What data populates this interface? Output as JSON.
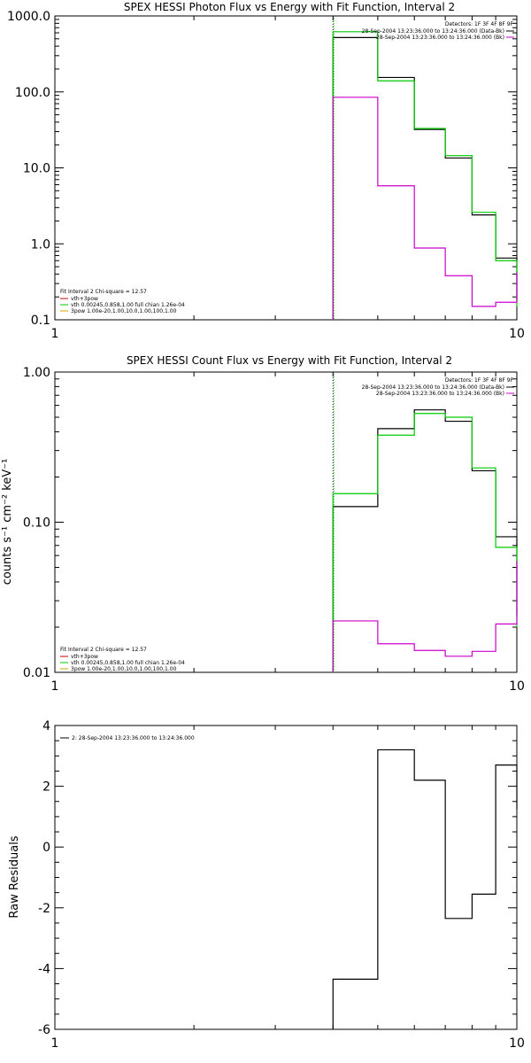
{
  "chart_data": [
    {
      "type": "line",
      "title": "SPEX HESSI Photon Flux vs Energy with Fit Function, Interval 2",
      "xlabel": "",
      "ylabel": "",
      "xscale": "log",
      "yscale": "log",
      "xlim": [
        1,
        10
      ],
      "ylim": [
        0.1,
        1000
      ],
      "x_ticks": [
        "1",
        "10"
      ],
      "y_ticks": [
        "0.1",
        "1.0",
        "10.0",
        "100.0",
        "1000.0"
      ],
      "vline": 4,
      "legend_top_right": {
        "title": "Detectors: 1F 3F 4F 8F 9F",
        "items": [
          {
            "text": "28-Sep-2004 13:23:36.000 to 13:24:36.000 (Data-Bk)",
            "color": "#000000"
          },
          {
            "text": "28-Sep-2004 13:23:36.000 to 13:24:36.000 (Bk)",
            "color": "#cc00cc"
          }
        ]
      },
      "legend_bottom_left": {
        "title": "Fit Interval 2   Chi-square = 12.57",
        "items": [
          {
            "text": "vth+3pow",
            "color": "#cc0000"
          },
          {
            "text": "vth 0.00245,0.858,1.00  full chian 1.26e-04",
            "color": "#00cc00"
          },
          {
            "text": "3pow 1.00e-20,1.00,10.0,1.00,100,1.00",
            "color": "#ccaa00"
          }
        ]
      },
      "series": [
        {
          "name": "Data-Bk",
          "color": "#000000",
          "edges": [
            4,
            5,
            6,
            7,
            8,
            9,
            10
          ],
          "values": [
            520,
            155,
            32,
            13.5,
            2.4,
            0.65,
            0.18
          ]
        },
        {
          "name": "vth+3pow",
          "color": "#00cc00",
          "edges": [
            4,
            5,
            6,
            7,
            8,
            9,
            10
          ],
          "values": [
            620,
            140,
            33,
            14.5,
            2.6,
            0.6,
            0.15
          ]
        },
        {
          "name": "Bk",
          "color": "#cc00cc",
          "edges": [
            4,
            5,
            6,
            7,
            8,
            9,
            10
          ],
          "values": [
            85,
            5.8,
            0.88,
            0.38,
            0.15,
            0.17,
            0.42
          ]
        }
      ]
    },
    {
      "type": "line",
      "title": "SPEX HESSI Count Flux vs Energy with Fit Function, Interval 2",
      "xlabel": "",
      "ylabel": "counts s⁻¹ cm⁻² keV⁻¹",
      "xscale": "log",
      "yscale": "log",
      "xlim": [
        1,
        10
      ],
      "ylim": [
        0.01,
        1
      ],
      "x_ticks": [
        "1",
        "10"
      ],
      "y_ticks": [
        "0.01",
        "0.10",
        "1.00"
      ],
      "vline": 4,
      "legend_top_right": {
        "title": "Detectors: 1F 3F 4F 8F 9F",
        "items": [
          {
            "text": "28-Sep-2004 13:23:36.000 to 13:24:36.000 (Data-Bk)",
            "color": "#000000"
          },
          {
            "text": "28-Sep-2004 13:23:36.000 to 13:24:36.000 (Bk)",
            "color": "#cc00cc"
          }
        ]
      },
      "legend_bottom_left": {
        "title": "Fit Interval 2   Chi-square = 12.57",
        "items": [
          {
            "text": "vth+3pow",
            "color": "#cc0000"
          },
          {
            "text": "vth 0.00245,0.858,1.00  full chian 1.26e-04",
            "color": "#00cc00"
          },
          {
            "text": "3pow 1.00e-20,1.00,10.0,1.00,100,1.00",
            "color": "#ccaa00"
          }
        ]
      },
      "series": [
        {
          "name": "Data-Bk",
          "color": "#000000",
          "edges": [
            4,
            5,
            6,
            7,
            8,
            9,
            10
          ],
          "values": [
            0.127,
            0.42,
            0.56,
            0.47,
            0.22,
            0.08,
            0.024
          ]
        },
        {
          "name": "vth+3pow",
          "color": "#00cc00",
          "edges": [
            4,
            5,
            6,
            7,
            8,
            9,
            10
          ],
          "values": [
            0.155,
            0.38,
            0.53,
            0.5,
            0.23,
            0.068,
            0.02
          ]
        },
        {
          "name": "Bk",
          "color": "#cc00cc",
          "edges": [
            4,
            5,
            6,
            7,
            8,
            9,
            10
          ],
          "values": [
            0.022,
            0.0155,
            0.014,
            0.0128,
            0.0138,
            0.021,
            0.055
          ]
        }
      ]
    },
    {
      "type": "line",
      "title": "",
      "xlabel": "",
      "ylabel": "Raw Residuals",
      "xscale": "log",
      "yscale": "linear",
      "xlim": [
        1,
        10
      ],
      "ylim": [
        -6,
        4
      ],
      "x_ticks": [
        "1",
        "10"
      ],
      "y_ticks": [
        "-6",
        "-4",
        "-2",
        "0",
        "2",
        "4"
      ],
      "legend_top_left": {
        "items": [
          {
            "text": "2: 28-Sep-2004 13:23:36.000 to 13:24:36.000",
            "color": "#000000"
          }
        ]
      },
      "series": [
        {
          "name": "2: 28-Sep-2004 13:23:36.000 to 13:24:36.000",
          "color": "#000000",
          "edges": [
            4,
            5,
            6,
            7,
            8,
            9,
            10
          ],
          "values": [
            -4.35,
            3.2,
            2.2,
            -2.35,
            -1.55,
            2.7,
            1.25
          ]
        }
      ]
    }
  ]
}
